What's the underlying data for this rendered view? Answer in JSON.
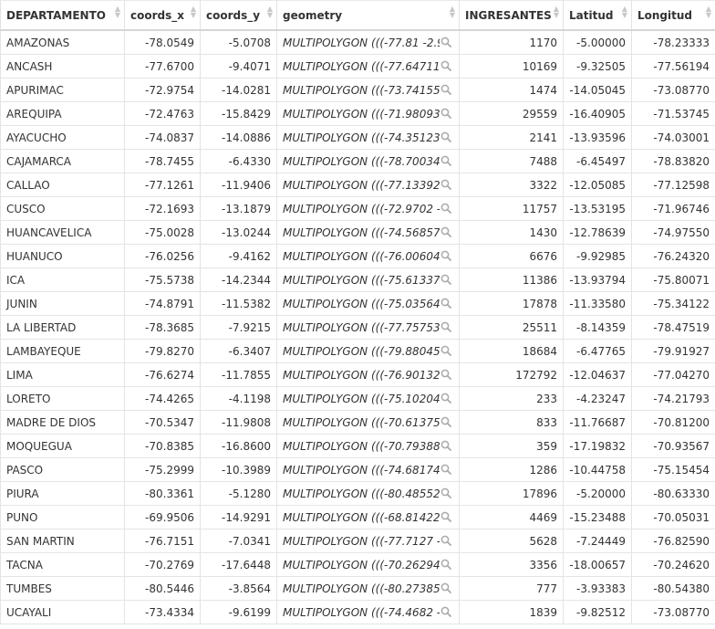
{
  "columns": [
    "DEPARTAMENTO",
    "coords_x",
    "coords_y",
    "geometry",
    "INGRESANTES",
    "Latitud",
    "Longitud"
  ],
  "rows": [
    [
      "AMAZONAS",
      "-78.0549",
      "-5.0708",
      "MULTIPOLYGON (((-77.81 -2.9...",
      "1170",
      "-5.00000",
      "-78.23333"
    ],
    [
      "ANCASH",
      "-77.6700",
      "-9.4071",
      "MULTIPOLYGON (((-77.64711 -...",
      "10169",
      "-9.32505",
      "-77.56194"
    ],
    [
      "APURIMAC",
      "-72.9754",
      "-14.0281",
      "MULTIPOLYGON (((-73.74155 -...",
      "1474",
      "-14.05045",
      "-73.08770"
    ],
    [
      "AREQUIPA",
      "-72.4763",
      "-15.8429",
      "MULTIPOLYGON (((-71.98093 -...",
      "29559",
      "-16.40905",
      "-71.53745"
    ],
    [
      "AYACUCHO",
      "-74.0837",
      "-14.0886",
      "MULTIPOLYGON (((-74.35123 -...",
      "2141",
      "-13.93596",
      "-74.03001"
    ],
    [
      "CAJAMARCA",
      "-78.7455",
      "-6.4330",
      "MULTIPOLYGON (((-78.70034 -...",
      "7488",
      "-6.45497",
      "-78.83820"
    ],
    [
      "CALLAO",
      "-77.1261",
      "-11.9406",
      "MULTIPOLYGON (((-77.13392 -...",
      "3322",
      "-12.05085",
      "-77.12598"
    ],
    [
      "CUSCO",
      "-72.1693",
      "-13.1879",
      "MULTIPOLYGON (((-72.9702 -1...",
      "11757",
      "-13.53195",
      "-71.96746"
    ],
    [
      "HUANCAVELICA",
      "-75.0028",
      "-13.0244",
      "MULTIPOLYGON (((-74.56857 -...",
      "1430",
      "-12.78639",
      "-74.97550"
    ],
    [
      "HUANUCO",
      "-76.0256",
      "-9.4162",
      "MULTIPOLYGON (((-76.00604 -...",
      "6676",
      "-9.92985",
      "-76.24320"
    ],
    [
      "ICA",
      "-75.5738",
      "-14.2344",
      "MULTIPOLYGON (((-75.61337 -...",
      "11386",
      "-13.93794",
      "-75.80071"
    ],
    [
      "JUNIN",
      "-74.8791",
      "-11.5382",
      "MULTIPOLYGON (((-75.03564 -...",
      "17878",
      "-11.33580",
      "-75.34122"
    ],
    [
      "LA LIBERTAD",
      "-78.3685",
      "-7.9215",
      "MULTIPOLYGON (((-77.75753 -...",
      "25511",
      "-8.14359",
      "-78.47519"
    ],
    [
      "LAMBAYEQUE",
      "-79.8270",
      "-6.3407",
      "MULTIPOLYGON (((-79.88045 -...",
      "18684",
      "-6.47765",
      "-79.91927"
    ],
    [
      "LIMA",
      "-76.6274",
      "-11.7855",
      "MULTIPOLYGON (((-76.90132 -...",
      "172792",
      "-12.04637",
      "-77.04270"
    ],
    [
      "LORETO",
      "-74.4265",
      "-4.1198",
      "MULTIPOLYGON (((-75.10204 -...",
      "233",
      "-4.23247",
      "-74.21793"
    ],
    [
      "MADRE DE DIOS",
      "-70.5347",
      "-11.9808",
      "MULTIPOLYGON (((-70.61375 -...",
      "833",
      "-11.76687",
      "-70.81200"
    ],
    [
      "MOQUEGUA",
      "-70.8385",
      "-16.8600",
      "MULTIPOLYGON (((-70.79388 -...",
      "359",
      "-17.19832",
      "-70.93567"
    ],
    [
      "PASCO",
      "-75.2999",
      "-10.3989",
      "MULTIPOLYGON (((-74.68174 -...",
      "1286",
      "-10.44758",
      "-75.15454"
    ],
    [
      "PIURA",
      "-80.3361",
      "-5.1280",
      "MULTIPOLYGON (((-80.48552 -...",
      "17896",
      "-5.20000",
      "-80.63330"
    ],
    [
      "PUNO",
      "-69.9506",
      "-14.9291",
      "MULTIPOLYGON (((-68.81422 -...",
      "4469",
      "-15.23488",
      "-70.05031"
    ],
    [
      "SAN MARTIN",
      "-76.7151",
      "-7.0341",
      "MULTIPOLYGON (((-77.7127 -5...",
      "5628",
      "-7.24449",
      "-76.82590"
    ],
    [
      "TACNA",
      "-70.2769",
      "-17.6448",
      "MULTIPOLYGON (((-70.26294 -...",
      "3356",
      "-18.00657",
      "-70.24620"
    ],
    [
      "TUMBES",
      "-80.5446",
      "-3.8564",
      "MULTIPOLYGON (((-80.27385 -...",
      "777",
      "-3.93383",
      "-80.54380"
    ],
    [
      "UCAYALI",
      "-73.4334",
      "-9.6199",
      "MULTIPOLYGON (((-74.4682 -7...",
      "1839",
      "-9.82512",
      "-73.08770"
    ]
  ]
}
